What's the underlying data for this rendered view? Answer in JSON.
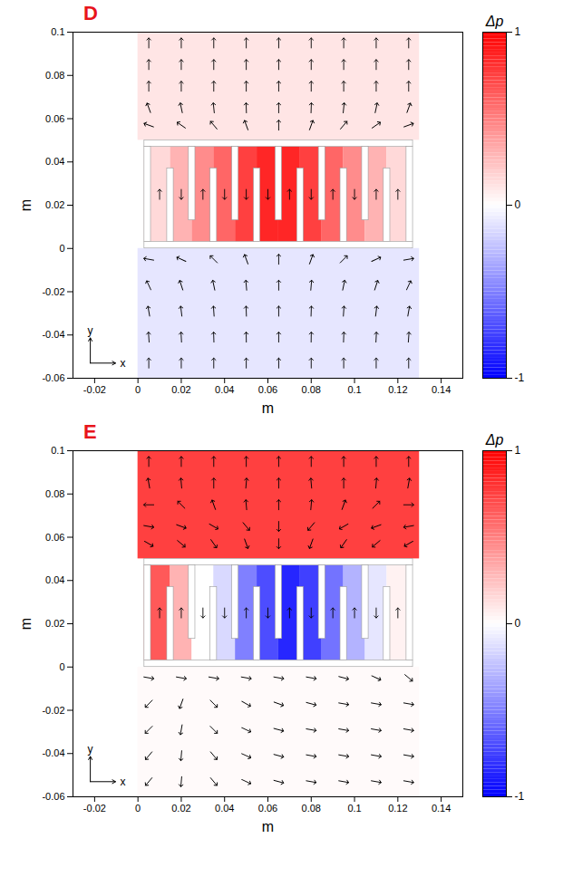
{
  "chart_data": [
    {
      "type": "heatmap",
      "title": "D",
      "xlabel": "m",
      "ylabel": "m",
      "xlim": [
        -0.03,
        0.15
      ],
      "ylim": [
        -0.06,
        0.1
      ],
      "xticks": [
        -0.02,
        0,
        0.02,
        0.04,
        0.06,
        0.08,
        0.1,
        0.12,
        0.14
      ],
      "yticks": [
        -0.06,
        -0.04,
        -0.02,
        0,
        0.02,
        0.04,
        0.06,
        0.08,
        0.1
      ],
      "cells": [
        [
          0,
          0.13,
          0.05,
          0.1,
          0.1
        ],
        [
          0,
          0.13,
          -0.06,
          0,
          -0.1
        ],
        [
          0.003,
          0.015,
          0.003,
          0.047,
          0.15
        ],
        [
          0.015,
          0.025,
          0.003,
          0.047,
          0.3
        ],
        [
          0.025,
          0.035,
          0.003,
          0.047,
          0.45
        ],
        [
          0.035,
          0.045,
          0.003,
          0.047,
          0.6
        ],
        [
          0.045,
          0.055,
          0.003,
          0.047,
          0.75
        ],
        [
          0.055,
          0.065,
          0.003,
          0.047,
          0.85
        ],
        [
          0.065,
          0.075,
          0.003,
          0.047,
          0.85
        ],
        [
          0.075,
          0.085,
          0.003,
          0.047,
          0.75
        ],
        [
          0.085,
          0.095,
          0.003,
          0.047,
          0.6
        ],
        [
          0.095,
          0.105,
          0.003,
          0.047,
          0.45
        ],
        [
          0.105,
          0.115,
          0.003,
          0.047,
          0.3
        ],
        [
          0.115,
          0.127,
          0.003,
          0.047,
          0.15
        ]
      ],
      "walls": [
        [
          0.003,
          0.127,
          0,
          0.003
        ],
        [
          0.003,
          0.127,
          0.047,
          0.05
        ],
        [
          0.003,
          0.006,
          0.003,
          0.047
        ],
        [
          0.124,
          0.127,
          0.003,
          0.047
        ],
        [
          0.0135,
          0.0165,
          0.003,
          0.037
        ],
        [
          0.0335,
          0.0365,
          0.003,
          0.037
        ],
        [
          0.0535,
          0.0565,
          0.003,
          0.037
        ],
        [
          0.0735,
          0.0765,
          0.003,
          0.037
        ],
        [
          0.0935,
          0.0965,
          0.003,
          0.037
        ],
        [
          0.1135,
          0.1165,
          0.003,
          0.037
        ],
        [
          0.0235,
          0.0265,
          0.013,
          0.047
        ],
        [
          0.0435,
          0.0465,
          0.013,
          0.047
        ],
        [
          0.0635,
          0.0665,
          0.013,
          0.047
        ],
        [
          0.0835,
          0.0865,
          0.013,
          0.047
        ],
        [
          0.1035,
          0.1065,
          0.013,
          0.047
        ]
      ],
      "arrows": {
        "x": [
          0.005,
          0.02,
          0.035,
          0.05,
          0.065,
          0.08,
          0.095,
          0.11,
          0.125
        ],
        "y": [
          0.095,
          0.085,
          0.075,
          0.065,
          0.057,
          -0.005,
          -0.017,
          -0.029,
          -0.041,
          -0.053
        ],
        "angle": [
          [
            0,
            0,
            0,
            0,
            0,
            0,
            0,
            0,
            0
          ],
          [
            0,
            0,
            0,
            0,
            0,
            0,
            0,
            0,
            0
          ],
          [
            0,
            0,
            0,
            0,
            0,
            0,
            0,
            0,
            0
          ],
          [
            -20,
            -12,
            -6,
            -2,
            0,
            2,
            6,
            12,
            20
          ],
          [
            -70,
            -55,
            -40,
            -20,
            0,
            20,
            40,
            55,
            70
          ],
          [
            -80,
            -65,
            -45,
            -20,
            0,
            20,
            45,
            65,
            80
          ],
          [
            -25,
            -18,
            -12,
            -5,
            0,
            5,
            12,
            18,
            25
          ],
          [
            -10,
            -7,
            -4,
            -2,
            0,
            2,
            4,
            7,
            10
          ],
          [
            -4,
            -3,
            -2,
            -1,
            0,
            1,
            2,
            3,
            4
          ],
          [
            0,
            0,
            0,
            0,
            0,
            0,
            0,
            0,
            0
          ]
        ]
      },
      "channel_arrows": [
        [
          0.01,
          0.025,
          0
        ],
        [
          0.02,
          0.025,
          180
        ],
        [
          0.03,
          0.025,
          0
        ],
        [
          0.04,
          0.025,
          180
        ],
        [
          0.05,
          0.025,
          180
        ],
        [
          0.06,
          0.025,
          180
        ],
        [
          0.07,
          0.025,
          0
        ],
        [
          0.08,
          0.025,
          180
        ],
        [
          0.09,
          0.025,
          0
        ],
        [
          0.1,
          0.025,
          180
        ],
        [
          0.11,
          0.025,
          0
        ],
        [
          0.12,
          0.025,
          0
        ]
      ],
      "annotations": [
        {
          "text": "y",
          "x": -0.022,
          "y": -0.038
        },
        {
          "text": "x",
          "x": -0.007,
          "y": -0.053
        }
      ],
      "colorbar": {
        "label": "Δp",
        "range": [
          -1,
          1
        ],
        "ticks": [
          -1,
          0,
          1
        ],
        "colors": [
          "#0000ff",
          "#ffffff",
          "#ff0000"
        ]
      }
    },
    {
      "type": "heatmap",
      "title": "E",
      "xlabel": "m",
      "ylabel": "m",
      "xlim": [
        -0.03,
        0.15
      ],
      "ylim": [
        -0.06,
        0.1
      ],
      "xticks": [
        -0.02,
        0,
        0.02,
        0.04,
        0.06,
        0.08,
        0.1,
        0.12,
        0.14
      ],
      "yticks": [
        -0.06,
        -0.04,
        -0.02,
        0,
        0.02,
        0.04,
        0.06,
        0.08,
        0.1
      ],
      "cells": [
        [
          0,
          0.13,
          0.05,
          0.1,
          0.75
        ],
        [
          0,
          0.13,
          -0.06,
          0,
          0.02
        ],
        [
          0.003,
          0.015,
          0.003,
          0.047,
          0.65
        ],
        [
          0.015,
          0.025,
          0.003,
          0.047,
          0.3
        ],
        [
          0.025,
          0.035,
          0.003,
          0.047,
          0
        ],
        [
          0.035,
          0.045,
          0.003,
          0.047,
          -0.15
        ],
        [
          0.045,
          0.055,
          0.003,
          0.047,
          -0.5
        ],
        [
          0.055,
          0.065,
          0.003,
          0.047,
          -0.7
        ],
        [
          0.065,
          0.075,
          0.003,
          0.047,
          -0.85
        ],
        [
          0.075,
          0.085,
          0.003,
          0.047,
          -0.75
        ],
        [
          0.085,
          0.095,
          0.003,
          0.047,
          -0.55
        ],
        [
          0.095,
          0.105,
          0.003,
          0.047,
          -0.3
        ],
        [
          0.105,
          0.115,
          0.003,
          0.047,
          -0.1
        ],
        [
          0.115,
          0.127,
          0.003,
          0.047,
          0.05
        ]
      ],
      "walls": [
        [
          0.003,
          0.127,
          0,
          0.003
        ],
        [
          0.003,
          0.127,
          0.047,
          0.05
        ],
        [
          0.003,
          0.006,
          0.003,
          0.047
        ],
        [
          0.124,
          0.127,
          0.003,
          0.047
        ],
        [
          0.0135,
          0.0165,
          0.003,
          0.037
        ],
        [
          0.0335,
          0.0365,
          0.003,
          0.037
        ],
        [
          0.0535,
          0.0565,
          0.003,
          0.037
        ],
        [
          0.0735,
          0.0765,
          0.003,
          0.037
        ],
        [
          0.0935,
          0.0965,
          0.003,
          0.037
        ],
        [
          0.1135,
          0.1165,
          0.003,
          0.037
        ],
        [
          0.0235,
          0.0265,
          0.013,
          0.047
        ],
        [
          0.0435,
          0.0465,
          0.013,
          0.047
        ],
        [
          0.0635,
          0.0665,
          0.013,
          0.047
        ],
        [
          0.0835,
          0.0865,
          0.013,
          0.047
        ],
        [
          0.1035,
          0.1065,
          0.013,
          0.047
        ]
      ],
      "arrows": {
        "x": [
          0.005,
          0.02,
          0.035,
          0.05,
          0.065,
          0.08,
          0.095,
          0.11,
          0.125
        ],
        "y": [
          0.095,
          0.085,
          0.075,
          0.065,
          0.057,
          -0.005,
          -0.017,
          -0.029,
          -0.041,
          -0.053
        ],
        "angle": [
          [
            0,
            0,
            0,
            0,
            0,
            0,
            0,
            0,
            0
          ],
          [
            -10,
            -5,
            0,
            5,
            0,
            -5,
            0,
            5,
            10
          ],
          [
            -90,
            -45,
            -20,
            -5,
            0,
            5,
            20,
            45,
            90
          ],
          [
            100,
            110,
            120,
            140,
            180,
            220,
            240,
            250,
            260
          ],
          [
            120,
            130,
            145,
            160,
            180,
            200,
            215,
            230,
            240
          ],
          [
            100,
            100,
            100,
            100,
            100,
            100,
            105,
            115,
            130
          ],
          [
            225,
            200,
            135,
            120,
            110,
            105,
            100,
            100,
            100
          ],
          [
            225,
            190,
            135,
            115,
            105,
            100,
            100,
            100,
            100
          ],
          [
            220,
            185,
            140,
            115,
            105,
            100,
            100,
            100,
            100
          ],
          [
            220,
            185,
            140,
            115,
            105,
            100,
            100,
            100,
            100
          ]
        ]
      },
      "channel_arrows": [
        [
          0.01,
          0.025,
          0
        ],
        [
          0.02,
          0.025,
          0
        ],
        [
          0.03,
          0.025,
          180
        ],
        [
          0.04,
          0.025,
          180
        ],
        [
          0.05,
          0.025,
          0
        ],
        [
          0.06,
          0.025,
          180
        ],
        [
          0.07,
          0.025,
          0
        ],
        [
          0.08,
          0.025,
          180
        ],
        [
          0.09,
          0.025,
          0
        ],
        [
          0.1,
          0.025,
          0
        ],
        [
          0.11,
          0.025,
          180
        ],
        [
          0.12,
          0.025,
          0
        ]
      ],
      "annotations": [
        {
          "text": "y",
          "x": -0.022,
          "y": -0.038
        },
        {
          "text": "x",
          "x": -0.007,
          "y": -0.053
        }
      ],
      "colorbar": {
        "label": "Δp",
        "range": [
          -1,
          1
        ],
        "ticks": [
          -1,
          0,
          1
        ],
        "colors": [
          "#0000ff",
          "#ffffff",
          "#ff0000"
        ]
      }
    }
  ]
}
